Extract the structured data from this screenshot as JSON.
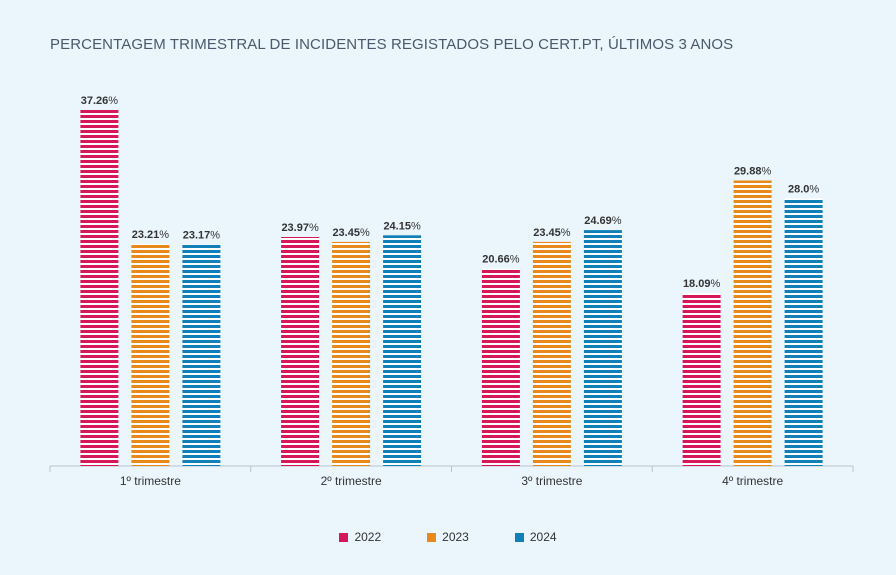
{
  "chart_data": {
    "type": "bar",
    "title": "PERCENTAGEM TRIMESTRAL DE INCIDENTES REGISTADOS PELO CERT.PT, ÚLTIMOS 3 ANOS",
    "xlabel": "",
    "ylabel": "",
    "categories": [
      "1º trimestre",
      "2º trimestre",
      "3º trimestre",
      "4º trimestre"
    ],
    "series": [
      {
        "name": "2022",
        "color": "#d6175a",
        "values": [
          37.26,
          23.97,
          20.66,
          18.09
        ],
        "labels": [
          "37.26",
          "23.97",
          "20.66",
          "18.09"
        ]
      },
      {
        "name": "2023",
        "color": "#e8891b",
        "values": [
          23.21,
          23.45,
          23.45,
          29.88
        ],
        "labels": [
          "23.21",
          "23.45",
          "23.45",
          "29.88"
        ]
      },
      {
        "name": "2024",
        "color": "#1280b8",
        "values": [
          23.17,
          24.15,
          24.69,
          28.0
        ],
        "labels": [
          "23.17",
          "24.15",
          "24.69",
          "28.0"
        ]
      }
    ],
    "value_suffix": "%",
    "ylim": [
      0,
      37.26
    ],
    "grid": false,
    "legend_position": "bottom-center",
    "bar_style": "horizontal-stripes"
  }
}
